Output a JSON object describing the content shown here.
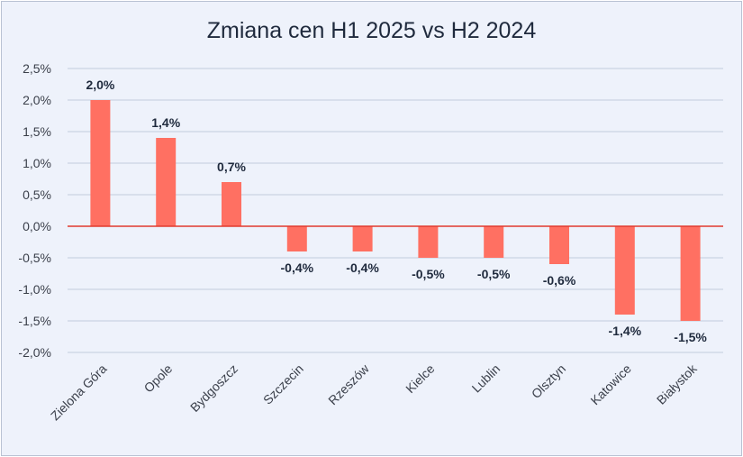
{
  "chart_data": {
    "type": "bar",
    "title": "Zmiana cen H1 2025 vs H2 2024",
    "xlabel": "",
    "ylabel": "",
    "categories": [
      "Zielona Góra",
      "Opole",
      "Bydgoszcz",
      "Szczecin",
      "Rzeszów",
      "Kielce",
      "Lublin",
      "Olsztyn",
      "Katowice",
      "Białystok"
    ],
    "values": [
      2.0,
      1.4,
      0.7,
      -0.4,
      -0.4,
      -0.5,
      -0.5,
      -0.6,
      -1.4,
      -1.5
    ],
    "data_labels": [
      "2,0%",
      "1,4%",
      "0,7%",
      "-0,4%",
      "-0,4%",
      "-0,5%",
      "-0,5%",
      "-0,6%",
      "-1,4%",
      "-1,5%"
    ],
    "ylim": [
      -2.0,
      2.5
    ],
    "yticks": [
      2.5,
      2.0,
      1.5,
      1.0,
      0.5,
      0.0,
      -0.5,
      -1.0,
      -1.5,
      -2.0
    ],
    "ytick_labels": [
      "2,5%",
      "2,0%",
      "1,5%",
      "1,0%",
      "0,5%",
      "0,0%",
      "-0,5%",
      "-1,0%",
      "-1,5%",
      "-2,0%"
    ],
    "grid": true,
    "legend": "none",
    "colors": {
      "bar": "#ff7062",
      "zero_line": "#e03a2e",
      "grid": "#c3ccdd"
    }
  }
}
